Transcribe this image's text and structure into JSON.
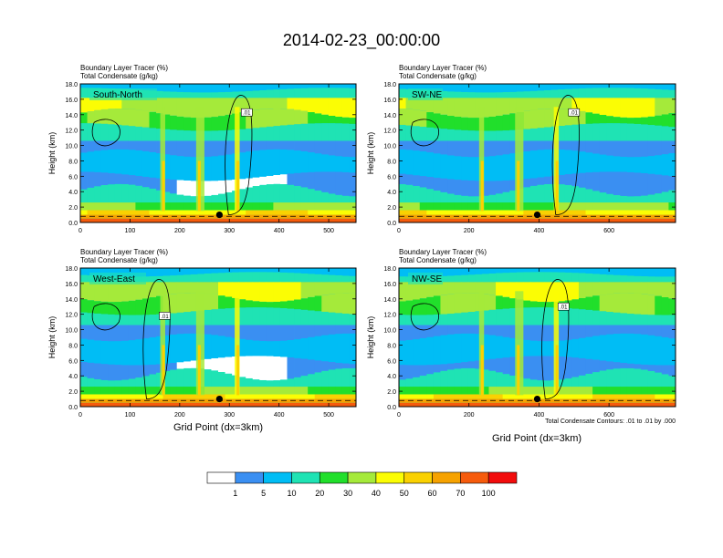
{
  "figure": {
    "title": "2014-02-23_00:00:00",
    "panel_title_line1": "Boundary Layer Tracer   (%)",
    "panel_title_line2": "Total Condensate   (g/kg)",
    "xlabel": "Grid Point (dx=3km)",
    "ylabel": "Height (km)",
    "contour_note": "Total Condensate Contours: .01 to .01 by .000",
    "contour_label": ".01"
  },
  "colors": {
    "scale": [
      "#ffffff",
      "#3a8ff2",
      "#00bdf5",
      "#1fe3b4",
      "#21df2b",
      "#a5ea3a",
      "#fbfd04",
      "#fad101",
      "#f6a200",
      "#f65b0c",
      "#f20c0c"
    ]
  },
  "colorbar": {
    "labels": [
      "1",
      "5",
      "10",
      "20",
      "30",
      "40",
      "50",
      "60",
      "70",
      "100"
    ]
  },
  "chart_data": [
    {
      "type": "heatmap",
      "panel": "South-North",
      "xlim": [
        0,
        555
      ],
      "ylim": [
        0,
        18
      ],
      "x_ticks": [
        "0",
        "100",
        "200",
        "300",
        "400",
        "500"
      ],
      "y_ticks": [
        "0.0",
        "2.0",
        "4.0",
        "6.0",
        "8.0",
        "10.0",
        "12.0",
        "14.0",
        "16.0",
        "18.0"
      ],
      "marker": {
        "x": 280,
        "y": 1.0
      },
      "contour_label_pos": {
        "x": 335,
        "y": 14.3
      }
    },
    {
      "type": "heatmap",
      "panel": "SW-NE",
      "xlim": [
        0,
        790
      ],
      "ylim": [
        0,
        18
      ],
      "x_ticks": [
        "0",
        "200",
        "400",
        "600"
      ],
      "y_ticks": [
        "0.0",
        "2.0",
        "4.0",
        "6.0",
        "8.0",
        "10.0",
        "12.0",
        "14.0",
        "16.0",
        "18.0"
      ],
      "marker": {
        "x": 395,
        "y": 1.0
      },
      "contour_label_pos": {
        "x": 500,
        "y": 14.3
      }
    },
    {
      "type": "heatmap",
      "panel": "West-East",
      "xlim": [
        0,
        555
      ],
      "ylim": [
        0,
        18
      ],
      "x_ticks": [
        "0",
        "100",
        "200",
        "300",
        "400",
        "500"
      ],
      "y_ticks": [
        "0.0",
        "2.0",
        "4.0",
        "6.0",
        "8.0",
        "10.0",
        "12.0",
        "14.0",
        "16.0",
        "18.0"
      ],
      "marker": {
        "x": 280,
        "y": 1.0
      },
      "contour_label_pos": {
        "x": 170,
        "y": 11.8
      }
    },
    {
      "type": "heatmap",
      "panel": "NW-SE",
      "xlim": [
        0,
        790
      ],
      "ylim": [
        0,
        18
      ],
      "x_ticks": [
        "0",
        "200",
        "400",
        "600"
      ],
      "y_ticks": [
        "0.0",
        "2.0",
        "4.0",
        "6.0",
        "8.0",
        "10.0",
        "12.0",
        "14.0",
        "16.0",
        "18.0"
      ],
      "marker": {
        "x": 395,
        "y": 1.0
      },
      "contour_label_pos": {
        "x": 470,
        "y": 13.0
      }
    }
  ]
}
